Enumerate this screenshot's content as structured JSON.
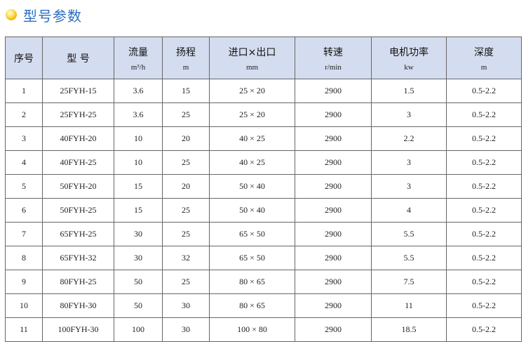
{
  "title": "型号参数",
  "colors": {
    "title": "#2b6fc2",
    "header_bg": "#d4dcef"
  },
  "headers": [
    {
      "cn": "序号",
      "unit": ""
    },
    {
      "cn": "型  号",
      "unit": ""
    },
    {
      "cn": "流量",
      "unit": "m³/h"
    },
    {
      "cn": "扬程",
      "unit": "m"
    },
    {
      "cn": "进口×出口",
      "unit": "mm"
    },
    {
      "cn": "转速",
      "unit": "r/min"
    },
    {
      "cn": "电机功率",
      "unit": "kw"
    },
    {
      "cn": "深度",
      "unit": "m"
    }
  ],
  "rows": [
    [
      "1",
      "25FYH-15",
      "3.6",
      "15",
      "25 × 20",
      "2900",
      "1.5",
      "0.5-2.2"
    ],
    [
      "2",
      "25FYH-25",
      "3.6",
      "25",
      "25 × 20",
      "2900",
      "3",
      "0.5-2.2"
    ],
    [
      "3",
      "40FYH-20",
      "10",
      "20",
      "40 × 25",
      "2900",
      "2.2",
      "0.5-2.2"
    ],
    [
      "4",
      "40FYH-25",
      "10",
      "25",
      "40 × 25",
      "2900",
      "3",
      "0.5-2.2"
    ],
    [
      "5",
      "50FYH-20",
      "15",
      "20",
      "50 × 40",
      "2900",
      "3",
      "0.5-2.2"
    ],
    [
      "6",
      "50FYH-25",
      "15",
      "25",
      "50 × 40",
      "2900",
      "4",
      "0.5-2.2"
    ],
    [
      "7",
      "65FYH-25",
      "30",
      "25",
      "65 × 50",
      "2900",
      "5.5",
      "0.5-2.2"
    ],
    [
      "8",
      "65FYH-32",
      "30",
      "32",
      "65 × 50",
      "2900",
      "5.5",
      "0.5-2.2"
    ],
    [
      "9",
      "80FYH-25",
      "50",
      "25",
      "80 × 65",
      "2900",
      "7.5",
      "0.5-2.2"
    ],
    [
      "10",
      "80FYH-30",
      "50",
      "30",
      "80 × 65",
      "2900",
      "11",
      "0.5-2.2"
    ],
    [
      "11",
      "100FYH-30",
      "100",
      "30",
      "100 × 80",
      "2900",
      "18.5",
      "0.5-2.2"
    ]
  ]
}
